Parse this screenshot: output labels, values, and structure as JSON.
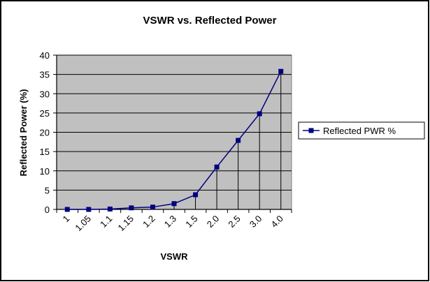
{
  "chart_data": {
    "type": "line",
    "title": "VSWR vs. Reflected Power",
    "xlabel": "VSWR",
    "ylabel": "Reflected Power (%)",
    "categories": [
      "1",
      "1.05",
      "1.1",
      "1.15",
      "1.2",
      "1.3",
      "1.5",
      "2.0",
      "2.5",
      "3.0",
      "4.0"
    ],
    "series": [
      {
        "name": "Reflected PWR %",
        "values": [
          0,
          0,
          0.1,
          0.4,
          0.6,
          1.5,
          3.8,
          11,
          17.9,
          24.8,
          35.8
        ]
      }
    ],
    "ylim": [
      0,
      40
    ],
    "yticks": [
      0,
      5,
      10,
      15,
      20,
      25,
      30,
      35,
      40
    ],
    "drop_lines": true,
    "grid": true,
    "legend_position": "right",
    "colors": {
      "plot_background": "#c0c0c0",
      "series": "#000080",
      "gridline": "#000000"
    }
  }
}
